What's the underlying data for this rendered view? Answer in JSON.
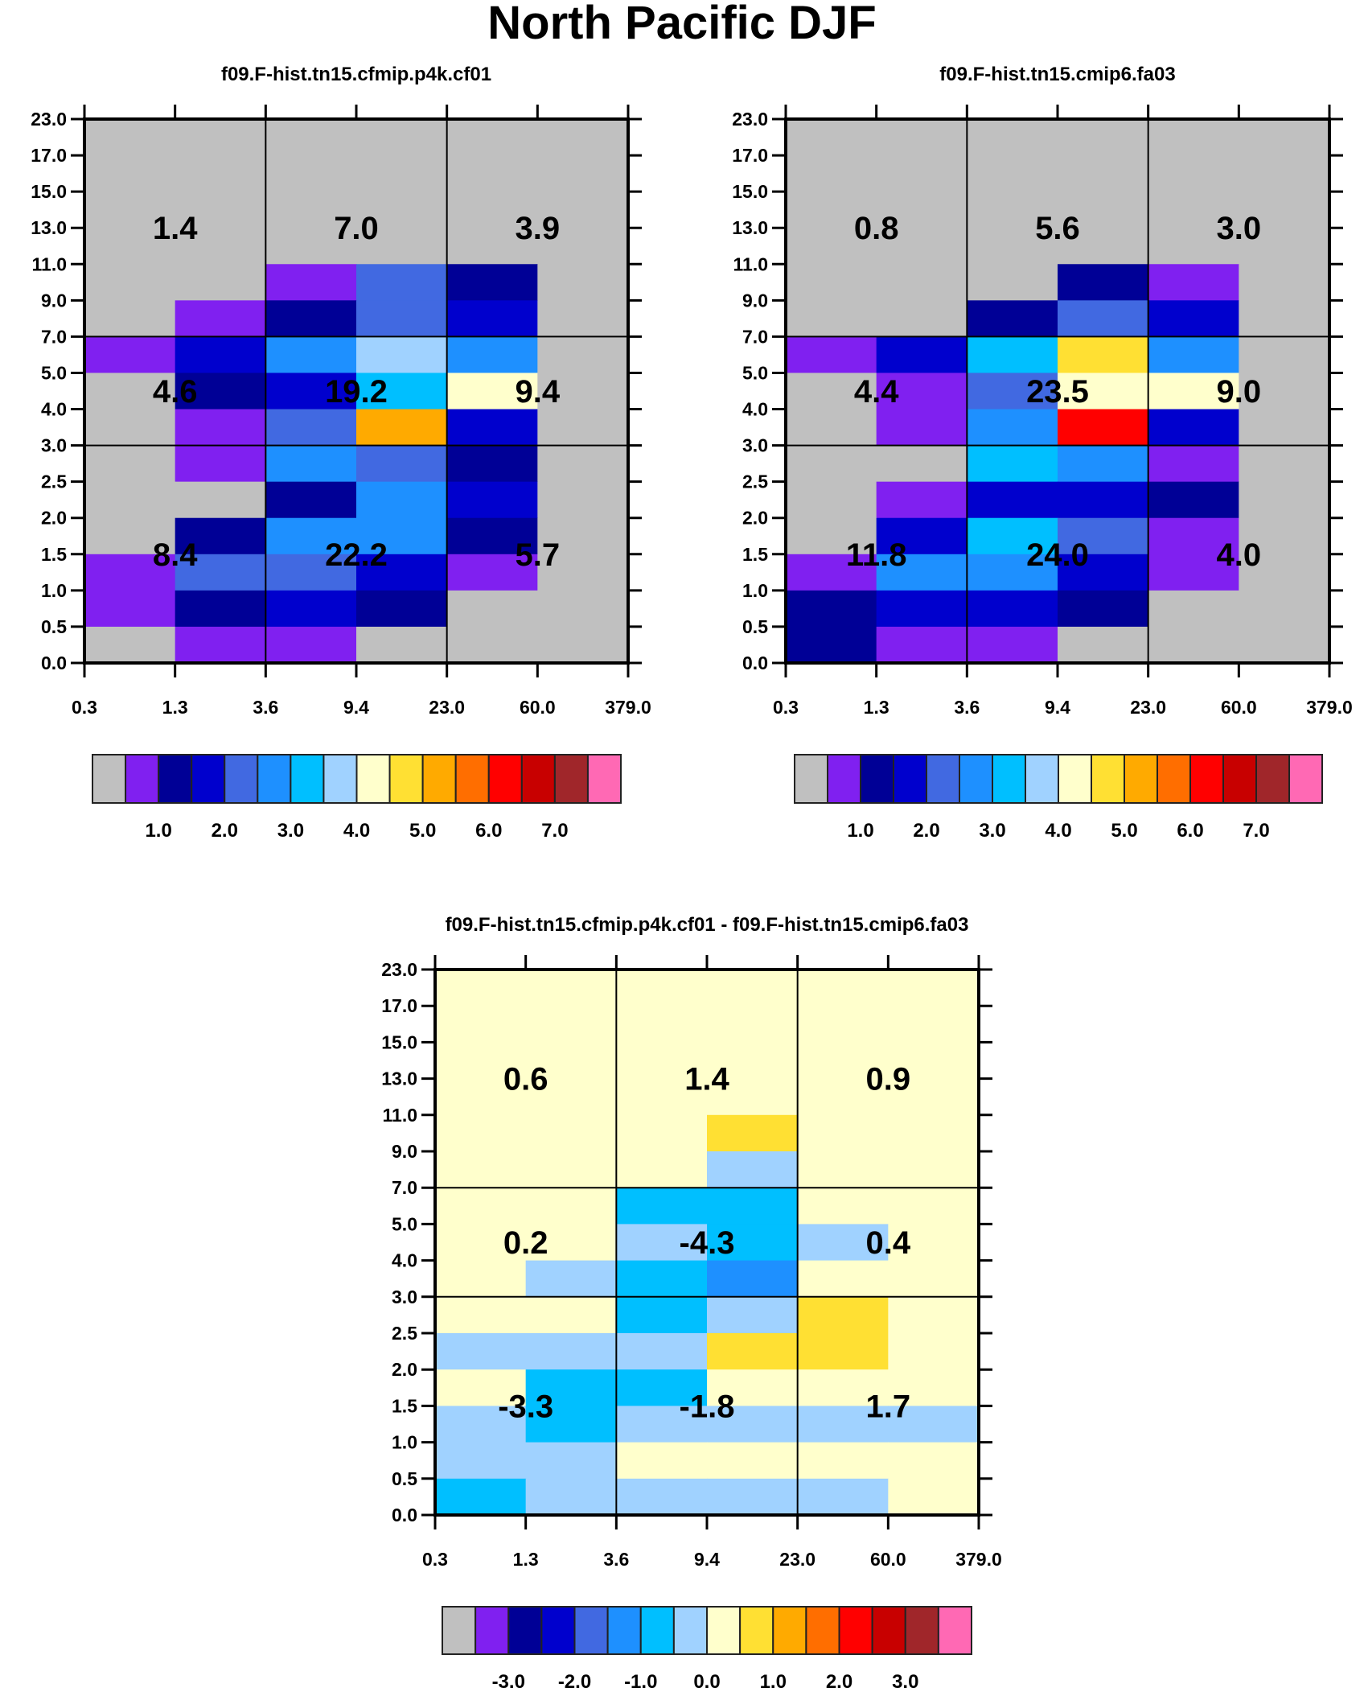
{
  "title": "North Pacific DJF",
  "palette": [
    "#c0c0c0",
    "#8020f0",
    "#000096",
    "#0000cd",
    "#4169e1",
    "#1e90ff",
    "#00bfff",
    "#a0d2ff",
    "#ffffcc",
    "#ffe033",
    "#ffaa00",
    "#ff6e00",
    "#ff0000",
    "#c80000",
    "#a0262a",
    "#ff69b4"
  ],
  "chart_data": [
    {
      "type": "heatmap",
      "title": "f09.F-hist.tn15.cfmip.p4k.cf01",
      "x_ticks": [
        "0.3",
        "1.3",
        "3.6",
        "9.4",
        "23.0",
        "60.0",
        "379.0"
      ],
      "y_ticks": [
        "0.0",
        "0.5",
        "1.0",
        "1.5",
        "2.0",
        "2.5",
        "3.0",
        "4.0",
        "5.0",
        "7.0",
        "9.0",
        "11.0",
        "13.0",
        "15.0",
        "17.0",
        "23.0"
      ],
      "cells_top_to_bottom_color_index": [
        [
          0,
          0,
          0,
          0,
          0,
          0
        ],
        [
          0,
          0,
          0,
          0,
          0,
          0
        ],
        [
          0,
          0,
          0,
          0,
          0,
          0
        ],
        [
          0,
          0,
          0,
          0,
          0,
          0
        ],
        [
          0,
          0,
          1,
          4,
          2,
          0
        ],
        [
          0,
          1,
          2,
          4,
          3,
          0
        ],
        [
          1,
          3,
          5,
          7,
          5,
          0
        ],
        [
          0,
          2,
          3,
          6,
          8,
          0
        ],
        [
          0,
          1,
          4,
          10,
          3,
          0
        ],
        [
          0,
          1,
          5,
          4,
          2,
          0
        ],
        [
          0,
          0,
          2,
          5,
          3,
          0
        ],
        [
          0,
          2,
          5,
          5,
          2,
          0
        ],
        [
          1,
          4,
          4,
          3,
          1,
          0
        ],
        [
          1,
          2,
          3,
          2,
          0,
          0
        ],
        [
          0,
          1,
          1,
          0,
          0,
          0
        ]
      ],
      "block_values": [
        [
          "1.4",
          "7.0",
          "3.9"
        ],
        [
          "4.6",
          "19.2",
          "9.4"
        ],
        [
          "8.4",
          "22.2",
          "5.7"
        ]
      ],
      "colorbar_labels": [
        "1.0",
        "2.0",
        "3.0",
        "4.0",
        "5.0",
        "6.0",
        "7.0"
      ]
    },
    {
      "type": "heatmap",
      "title": "f09.F-hist.tn15.cmip6.fa03",
      "x_ticks": [
        "0.3",
        "1.3",
        "3.6",
        "9.4",
        "23.0",
        "60.0",
        "379.0"
      ],
      "y_ticks": [
        "0.0",
        "0.5",
        "1.0",
        "1.5",
        "2.0",
        "2.5",
        "3.0",
        "4.0",
        "5.0",
        "7.0",
        "9.0",
        "11.0",
        "13.0",
        "15.0",
        "17.0",
        "23.0"
      ],
      "cells_top_to_bottom_color_index": [
        [
          0,
          0,
          0,
          0,
          0,
          0
        ],
        [
          0,
          0,
          0,
          0,
          0,
          0
        ],
        [
          0,
          0,
          0,
          0,
          0,
          0
        ],
        [
          0,
          0,
          0,
          0,
          0,
          0
        ],
        [
          0,
          0,
          0,
          2,
          1,
          0
        ],
        [
          0,
          0,
          2,
          4,
          3,
          0
        ],
        [
          1,
          3,
          6,
          9,
          5,
          0
        ],
        [
          0,
          1,
          4,
          8,
          8,
          0
        ],
        [
          0,
          1,
          5,
          12,
          3,
          0
        ],
        [
          0,
          0,
          6,
          5,
          1,
          0
        ],
        [
          0,
          1,
          3,
          3,
          2,
          0
        ],
        [
          0,
          3,
          6,
          4,
          1,
          0
        ],
        [
          1,
          5,
          5,
          3,
          1,
          0
        ],
        [
          2,
          3,
          3,
          2,
          0,
          0
        ],
        [
          2,
          1,
          1,
          0,
          0,
          0
        ]
      ],
      "block_values": [
        [
          "0.8",
          "5.6",
          "3.0"
        ],
        [
          "4.4",
          "23.5",
          "9.0"
        ],
        [
          "11.8",
          "24.0",
          "4.0"
        ]
      ],
      "colorbar_labels": [
        "1.0",
        "2.0",
        "3.0",
        "4.0",
        "5.0",
        "6.0",
        "7.0"
      ]
    },
    {
      "type": "heatmap",
      "title": "f09.F-hist.tn15.cfmip.p4k.cf01 - f09.F-hist.tn15.cmip6.fa03",
      "x_ticks": [
        "0.3",
        "1.3",
        "3.6",
        "9.4",
        "23.0",
        "60.0",
        "379.0"
      ],
      "y_ticks": [
        "0.0",
        "0.5",
        "1.0",
        "1.5",
        "2.0",
        "2.5",
        "3.0",
        "4.0",
        "5.0",
        "7.0",
        "9.0",
        "11.0",
        "13.0",
        "15.0",
        "17.0",
        "23.0"
      ],
      "cells_top_to_bottom_color_index": [
        [
          8,
          8,
          8,
          8,
          8,
          8
        ],
        [
          8,
          8,
          8,
          8,
          8,
          8
        ],
        [
          8,
          8,
          8,
          8,
          8,
          8
        ],
        [
          8,
          8,
          8,
          8,
          8,
          8
        ],
        [
          8,
          8,
          8,
          9,
          8,
          8
        ],
        [
          8,
          8,
          8,
          7,
          8,
          8
        ],
        [
          8,
          8,
          6,
          6,
          8,
          8
        ],
        [
          8,
          8,
          7,
          6,
          7,
          8
        ],
        [
          8,
          7,
          6,
          5,
          8,
          8
        ],
        [
          8,
          8,
          6,
          7,
          9,
          8
        ],
        [
          7,
          7,
          7,
          9,
          9,
          8
        ],
        [
          8,
          6,
          6,
          8,
          8,
          8
        ],
        [
          7,
          6,
          7,
          7,
          7,
          7
        ],
        [
          7,
          7,
          8,
          8,
          8,
          8
        ],
        [
          6,
          7,
          7,
          7,
          7,
          8
        ]
      ],
      "block_values": [
        [
          "0.6",
          "1.4",
          "0.9"
        ],
        [
          "0.2",
          "-4.3",
          "0.4"
        ],
        [
          "-3.3",
          "-1.8",
          "1.7"
        ]
      ],
      "colorbar_labels": [
        "-3.0",
        "-2.0",
        "-1.0",
        "0.0",
        "1.0",
        "2.0",
        "3.0"
      ]
    }
  ]
}
